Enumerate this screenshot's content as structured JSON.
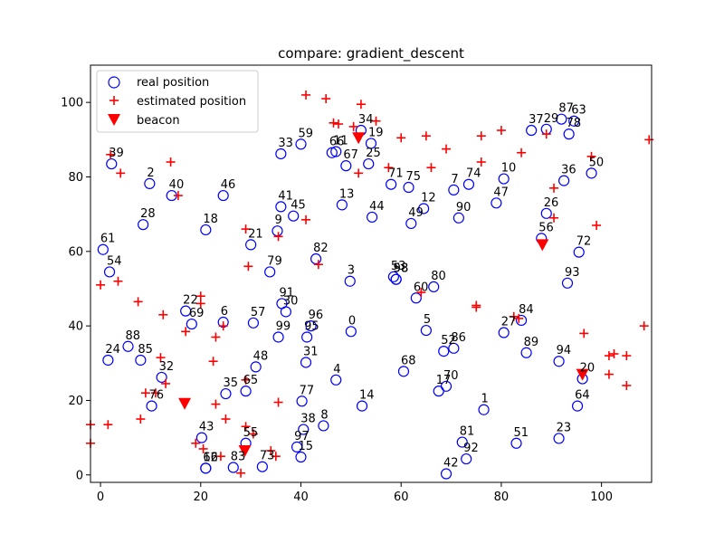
{
  "chart_data": {
    "type": "scatter",
    "title": "compare: gradient_descent",
    "xlabel": "",
    "ylabel": "",
    "xlim": [
      -2,
      110
    ],
    "ylim": [
      -2,
      110
    ],
    "xticks": [
      0,
      20,
      40,
      60,
      80,
      100
    ],
    "yticks": [
      0,
      20,
      40,
      60,
      80,
      100
    ],
    "grid": false,
    "legend_position": "top-left",
    "legend": [
      "real position",
      "estimated position",
      "beacon"
    ],
    "colors": {
      "real": "#0000ff",
      "estimated": "#ff0000",
      "beacon": "#ff0000"
    },
    "series": [
      {
        "name": "real position",
        "points": [
          {
            "id": "0",
            "x": 50.0,
            "y": 38.5
          },
          {
            "id": "1",
            "x": 76.5,
            "y": 17.5
          },
          {
            "id": "2",
            "x": 9.8,
            "y": 78.2
          },
          {
            "id": "3",
            "x": 49.8,
            "y": 52.0
          },
          {
            "id": "4",
            "x": 47.0,
            "y": 25.5
          },
          {
            "id": "5",
            "x": 65.0,
            "y": 38.8
          },
          {
            "id": "6",
            "x": 24.5,
            "y": 41.0
          },
          {
            "id": "7",
            "x": 70.5,
            "y": 76.5
          },
          {
            "id": "8",
            "x": 44.5,
            "y": 13.2
          },
          {
            "id": "9",
            "x": 35.3,
            "y": 65.5
          },
          {
            "id": "10",
            "x": 80.5,
            "y": 79.5
          },
          {
            "id": "11",
            "x": 47.0,
            "y": 86.8
          },
          {
            "id": "12",
            "x": 64.5,
            "y": 71.5
          },
          {
            "id": "13",
            "x": 48.2,
            "y": 72.5
          },
          {
            "id": "14",
            "x": 52.2,
            "y": 18.5
          },
          {
            "id": "15",
            "x": 40.0,
            "y": 4.8
          },
          {
            "id": "16",
            "x": 21.0,
            "y": 1.8
          },
          {
            "id": "17",
            "x": 67.5,
            "y": 22.5
          },
          {
            "id": "18",
            "x": 21.0,
            "y": 65.8
          },
          {
            "id": "19",
            "x": 54.0,
            "y": 89.0
          },
          {
            "id": "20",
            "x": 96.2,
            "y": 25.8
          },
          {
            "id": "21",
            "x": 30.0,
            "y": 61.8
          },
          {
            "id": "22",
            "x": 17.0,
            "y": 44.0
          },
          {
            "id": "23",
            "x": 91.5,
            "y": 9.8
          },
          {
            "id": "24",
            "x": 1.5,
            "y": 30.8
          },
          {
            "id": "25",
            "x": 53.5,
            "y": 83.5
          },
          {
            "id": "26",
            "x": 89.0,
            "y": 70.2
          },
          {
            "id": "27",
            "x": 80.5,
            "y": 38.2
          },
          {
            "id": "28",
            "x": 8.5,
            "y": 67.2
          },
          {
            "id": "29",
            "x": 89.0,
            "y": 92.8
          },
          {
            "id": "30",
            "x": 37.0,
            "y": 43.8
          },
          {
            "id": "31",
            "x": 41.0,
            "y": 30.2
          },
          {
            "id": "32",
            "x": 12.2,
            "y": 26.2
          },
          {
            "id": "33",
            "x": 36.0,
            "y": 86.2
          },
          {
            "id": "34",
            "x": 52.0,
            "y": 92.5
          },
          {
            "id": "35",
            "x": 25.0,
            "y": 21.8
          },
          {
            "id": "36",
            "x": 92.5,
            "y": 79.0
          },
          {
            "id": "37",
            "x": 86.0,
            "y": 92.5
          },
          {
            "id": "38",
            "x": 40.5,
            "y": 12.2
          },
          {
            "id": "39",
            "x": 2.2,
            "y": 83.5
          },
          {
            "id": "40",
            "x": 14.2,
            "y": 75.0
          },
          {
            "id": "41",
            "x": 36.0,
            "y": 72.0
          },
          {
            "id": "42",
            "x": 69.0,
            "y": 0.3
          },
          {
            "id": "43",
            "x": 20.2,
            "y": 10.0
          },
          {
            "id": "44",
            "x": 54.2,
            "y": 69.2
          },
          {
            "id": "45",
            "x": 38.5,
            "y": 69.5
          },
          {
            "id": "46",
            "x": 24.5,
            "y": 75.0
          },
          {
            "id": "47",
            "x": 79.0,
            "y": 73.0
          },
          {
            "id": "48",
            "x": 31.0,
            "y": 29.0
          },
          {
            "id": "49",
            "x": 62.0,
            "y": 67.5
          },
          {
            "id": "50",
            "x": 98.0,
            "y": 81.0
          },
          {
            "id": "51",
            "x": 83.0,
            "y": 8.5
          },
          {
            "id": "52",
            "x": 68.5,
            "y": 33.2
          },
          {
            "id": "53",
            "x": 58.5,
            "y": 53.2
          },
          {
            "id": "54",
            "x": 1.8,
            "y": 54.5
          },
          {
            "id": "55",
            "x": 29.0,
            "y": 8.5
          },
          {
            "id": "56",
            "x": 88.0,
            "y": 63.5
          },
          {
            "id": "57",
            "x": 30.5,
            "y": 40.8
          },
          {
            "id": "58",
            "x": 59.0,
            "y": 52.5
          },
          {
            "id": "59",
            "x": 40.0,
            "y": 88.8
          },
          {
            "id": "60",
            "x": 63.0,
            "y": 47.5
          },
          {
            "id": "61",
            "x": 0.5,
            "y": 60.5
          },
          {
            "id": "62",
            "x": 21.0,
            "y": 1.8
          },
          {
            "id": "63",
            "x": 94.5,
            "y": 95.0
          },
          {
            "id": "64",
            "x": 95.2,
            "y": 18.5
          },
          {
            "id": "65",
            "x": 29.0,
            "y": 22.5
          },
          {
            "id": "66",
            "x": 46.2,
            "y": 86.5
          },
          {
            "id": "67",
            "x": 49.0,
            "y": 83.0
          },
          {
            "id": "68",
            "x": 60.5,
            "y": 27.8
          },
          {
            "id": "69",
            "x": 18.2,
            "y": 40.5
          },
          {
            "id": "70",
            "x": 69.0,
            "y": 23.8
          },
          {
            "id": "71",
            "x": 58.0,
            "y": 78.0
          },
          {
            "id": "72",
            "x": 95.5,
            "y": 59.8
          },
          {
            "id": "73",
            "x": 32.3,
            "y": 2.2
          },
          {
            "id": "74",
            "x": 73.5,
            "y": 78.0
          },
          {
            "id": "75",
            "x": 61.5,
            "y": 77.2
          },
          {
            "id": "76",
            "x": 10.2,
            "y": 18.5
          },
          {
            "id": "77",
            "x": 40.2,
            "y": 19.8
          },
          {
            "id": "78",
            "x": 93.5,
            "y": 91.5
          },
          {
            "id": "79",
            "x": 33.8,
            "y": 54.5
          },
          {
            "id": "80",
            "x": 66.5,
            "y": 50.5
          },
          {
            "id": "81",
            "x": 72.2,
            "y": 8.8
          },
          {
            "id": "82",
            "x": 43.0,
            "y": 58.0
          },
          {
            "id": "83",
            "x": 26.5,
            "y": 2.0
          },
          {
            "id": "84",
            "x": 84.0,
            "y": 41.5
          },
          {
            "id": "85",
            "x": 8.0,
            "y": 30.8
          },
          {
            "id": "86",
            "x": 70.5,
            "y": 34.0
          },
          {
            "id": "87",
            "x": 92.0,
            "y": 95.5
          },
          {
            "id": "88",
            "x": 5.5,
            "y": 34.5
          },
          {
            "id": "89",
            "x": 85.0,
            "y": 32.8
          },
          {
            "id": "90",
            "x": 71.5,
            "y": 69.0
          },
          {
            "id": "91",
            "x": 36.2,
            "y": 46.0
          },
          {
            "id": "92",
            "x": 73.0,
            "y": 4.3
          },
          {
            "id": "93",
            "x": 93.2,
            "y": 51.5
          },
          {
            "id": "94",
            "x": 91.5,
            "y": 30.5
          },
          {
            "id": "95",
            "x": 41.2,
            "y": 37.0
          },
          {
            "id": "96",
            "x": 42.0,
            "y": 40.0
          },
          {
            "id": "97",
            "x": 39.2,
            "y": 7.5
          },
          {
            "id": "98",
            "x": 59.0,
            "y": 52.5
          },
          {
            "id": "99",
            "x": 35.5,
            "y": 37.0
          }
        ]
      },
      {
        "name": "estimated position",
        "points": [
          [
            41,
            102
          ],
          [
            45,
            101
          ],
          [
            46.5,
            94.5
          ],
          [
            47.5,
            94.2
          ],
          [
            52,
            99.5
          ],
          [
            55,
            95
          ],
          [
            50.5,
            93.5
          ],
          [
            51.5,
            81
          ],
          [
            60,
            90.5
          ],
          [
            65,
            91
          ],
          [
            69,
            87.5
          ],
          [
            76,
            91
          ],
          [
            80,
            92.5
          ],
          [
            84,
            86.5
          ],
          [
            89,
            91.5
          ],
          [
            98,
            85.5
          ],
          [
            109.5,
            90
          ],
          [
            2,
            86
          ],
          [
            4,
            81
          ],
          [
            14,
            84
          ],
          [
            15.5,
            75
          ],
          [
            66,
            82.5
          ],
          [
            76,
            84
          ],
          [
            57.5,
            82.5
          ],
          [
            90.5,
            77
          ],
          [
            90.5,
            69
          ],
          [
            99,
            67
          ],
          [
            41,
            68.5
          ],
          [
            35.5,
            64
          ],
          [
            29,
            66
          ],
          [
            43.5,
            56.5
          ],
          [
            29.5,
            56
          ],
          [
            0,
            51
          ],
          [
            3.5,
            52
          ],
          [
            7.5,
            46.5
          ],
          [
            12.5,
            43
          ],
          [
            20,
            46
          ],
          [
            20,
            48
          ],
          [
            17,
            38.5
          ],
          [
            23,
            37
          ],
          [
            24.5,
            40
          ],
          [
            64,
            49
          ],
          [
            75,
            45.5
          ],
          [
            75,
            45
          ],
          [
            82.5,
            42.5
          ],
          [
            83.5,
            42
          ],
          [
            96.5,
            38
          ],
          [
            108.5,
            40
          ],
          [
            12,
            31.5
          ],
          [
            22.5,
            30.5
          ],
          [
            13,
            24.5
          ],
          [
            9,
            22
          ],
          [
            11,
            22
          ],
          [
            23,
            19
          ],
          [
            29,
            25.5
          ],
          [
            35.5,
            19.5
          ],
          [
            25,
            15
          ],
          [
            8,
            15
          ],
          [
            1.5,
            13.5
          ],
          [
            -2,
            13.5
          ],
          [
            -2,
            8.5
          ],
          [
            19,
            8.5
          ],
          [
            20.5,
            7
          ],
          [
            29,
            13
          ],
          [
            30.5,
            11
          ],
          [
            24,
            5
          ],
          [
            34,
            6.5
          ],
          [
            35,
            5
          ],
          [
            28,
            0.5
          ],
          [
            101.5,
            27
          ],
          [
            101.5,
            32
          ],
          [
            102.5,
            32.5
          ],
          [
            105,
            32
          ],
          [
            105,
            24
          ]
        ]
      },
      {
        "name": "beacon",
        "points": [
          [
            16.8,
            19.2
          ],
          [
            28.8,
            6.5
          ],
          [
            51.5,
            90.5
          ],
          [
            88.2,
            61.8
          ],
          [
            96.2,
            27.0
          ]
        ]
      }
    ]
  }
}
